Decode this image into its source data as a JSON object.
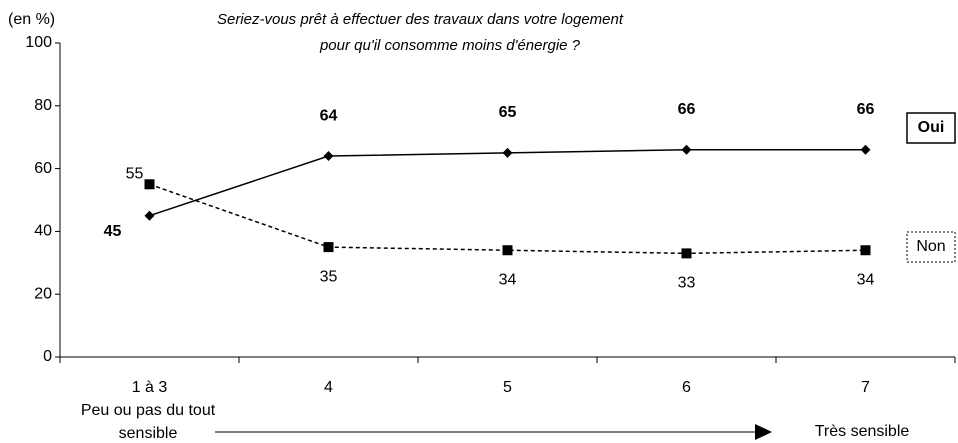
{
  "chart_data": {
    "type": "line",
    "title": [
      "Seriez-vous prêt à effectuer des travaux dans votre logement",
      "pour qu'il consomme moins d'énergie ?"
    ],
    "y_unit": "(en %)",
    "categories": [
      "1 à 3",
      "4",
      "5",
      "6",
      "7"
    ],
    "series": [
      {
        "name": "Oui",
        "color": "#000000",
        "marker": "diamond",
        "dash": "solid",
        "bold_labels": true,
        "legend_border": "solid",
        "values": [
          45,
          64,
          65,
          66,
          66
        ]
      },
      {
        "name": "Non",
        "color": "#000000",
        "marker": "square",
        "dash": "dotted",
        "bold_labels": false,
        "legend_border": "dotted",
        "values": [
          55,
          35,
          34,
          33,
          34
        ]
      }
    ],
    "ylim": [
      0,
      100
    ],
    "yticks": [
      0,
      20,
      40,
      60,
      80,
      100
    ],
    "grid": false,
    "annotations": {
      "low": [
        "Peu ou pas du tout",
        "sensible"
      ],
      "high": "Très sensible"
    }
  }
}
